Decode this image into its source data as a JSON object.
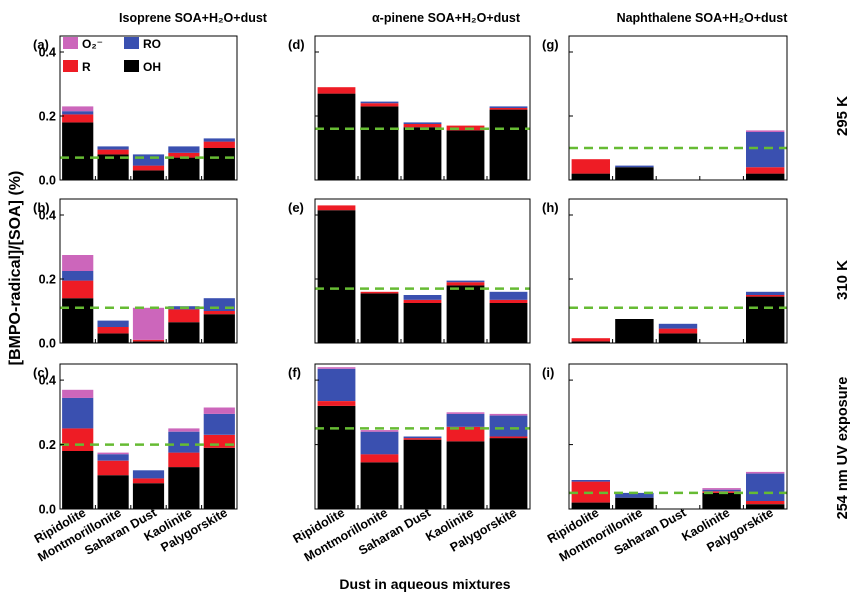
{
  "figure": {
    "y_axis_label": "[BMPO-radical]/[SOA] (%)",
    "x_axis_label": "Dust in aqueous mixtures",
    "column_titles": [
      "Isoprene SOA+H₂O+dust",
      "α-pinene SOA+H₂O+dust",
      "Naphthalene SOA+H₂O+dust"
    ],
    "row_labels": [
      "295 K",
      "310 K",
      "254 nm UV exposure"
    ],
    "legend": [
      {
        "key": "O2",
        "label": "O₂⁻",
        "color": "#cc66bb"
      },
      {
        "key": "RO",
        "label": "RO",
        "color": "#3a50b0"
      },
      {
        "key": "R",
        "label": "R",
        "color": "#ee1c25"
      },
      {
        "key": "OH",
        "label": "OH",
        "color": "#000000"
      }
    ],
    "reference_line_color": "#66bb33"
  },
  "chart_data": [
    {
      "panel": "(a)",
      "type": "bar",
      "stacked": true,
      "categories": [
        "Ripidolite",
        "Montmorillonite",
        "Saharan Dust",
        "Kaolinite",
        "Palygorskite"
      ],
      "ylim": [
        0,
        0.45
      ],
      "yticks": [
        0.0,
        0.2,
        0.4
      ],
      "reference_line": 0.07,
      "series": [
        {
          "name": "OH",
          "values": [
            0.18,
            0.08,
            0.03,
            0.07,
            0.1
          ]
        },
        {
          "name": "R",
          "values": [
            0.025,
            0.015,
            0.015,
            0.015,
            0.02
          ]
        },
        {
          "name": "RO",
          "values": [
            0.01,
            0.01,
            0.035,
            0.02,
            0.01
          ]
        },
        {
          "name": "O2",
          "values": [
            0.015,
            0.0,
            0.0,
            0.0,
            0.0
          ]
        }
      ]
    },
    {
      "panel": "(d)",
      "type": "bar",
      "stacked": true,
      "categories": [
        "Ripidolite",
        "Montmorillonite",
        "Saharan Dust",
        "Kaolinite",
        "Palygorskite"
      ],
      "ylim": [
        0,
        0.45
      ],
      "yticks": [
        0.0,
        0.2,
        0.4
      ],
      "reference_line": 0.16,
      "series": [
        {
          "name": "OH",
          "values": [
            0.27,
            0.23,
            0.165,
            0.155,
            0.22
          ]
        },
        {
          "name": "R",
          "values": [
            0.02,
            0.01,
            0.01,
            0.015,
            0.005
          ]
        },
        {
          "name": "RO",
          "values": [
            0.0,
            0.005,
            0.005,
            0.0,
            0.005
          ]
        },
        {
          "name": "O2",
          "values": [
            0.0,
            0.0,
            0.0,
            0.0,
            0.0
          ]
        }
      ]
    },
    {
      "panel": "(g)",
      "type": "bar",
      "stacked": true,
      "categories": [
        "Ripidolite",
        "Montmorillonite",
        "Saharan Dust",
        "Kaolinite",
        "Palygorskite"
      ],
      "ylim": [
        0,
        0.45
      ],
      "yticks": [
        0.0,
        0.2,
        0.4
      ],
      "reference_line": 0.1,
      "series": [
        {
          "name": "OH",
          "values": [
            0.02,
            0.04,
            0,
            0,
            0.02
          ]
        },
        {
          "name": "R",
          "values": [
            0.045,
            0.0,
            0,
            0,
            0.02
          ]
        },
        {
          "name": "RO",
          "values": [
            0.0,
            0.005,
            0,
            0,
            0.11
          ]
        },
        {
          "name": "O2",
          "values": [
            0.0,
            0.0,
            0,
            0,
            0.005
          ]
        }
      ]
    },
    {
      "panel": "(b)",
      "type": "bar",
      "stacked": true,
      "categories": [
        "Ripidolite",
        "Montmorillonite",
        "Saharan Dust",
        "Kaolinite",
        "Palygorskite"
      ],
      "ylim": [
        0,
        0.45
      ],
      "yticks": [
        0.0,
        0.2,
        0.4
      ],
      "reference_line": 0.11,
      "series": [
        {
          "name": "OH",
          "values": [
            0.14,
            0.03,
            0.005,
            0.065,
            0.09
          ]
        },
        {
          "name": "R",
          "values": [
            0.055,
            0.02,
            0.005,
            0.04,
            0.01
          ]
        },
        {
          "name": "RO",
          "values": [
            0.03,
            0.02,
            0.0,
            0.01,
            0.04
          ]
        },
        {
          "name": "O2",
          "values": [
            0.05,
            0.0,
            0.1,
            0.0,
            0.0
          ]
        }
      ]
    },
    {
      "panel": "(e)",
      "type": "bar",
      "stacked": true,
      "categories": [
        "Ripidolite",
        "Montmorillonite",
        "Saharan Dust",
        "Kaolinite",
        "Palygorskite"
      ],
      "ylim": [
        0,
        0.45
      ],
      "yticks": [
        0.0,
        0.2,
        0.4
      ],
      "reference_line": 0.17,
      "series": [
        {
          "name": "OH",
          "values": [
            0.415,
            0.155,
            0.125,
            0.18,
            0.125
          ]
        },
        {
          "name": "R",
          "values": [
            0.015,
            0.005,
            0.01,
            0.01,
            0.01
          ]
        },
        {
          "name": "RO",
          "values": [
            0.0,
            0.0,
            0.015,
            0.005,
            0.025
          ]
        },
        {
          "name": "O2",
          "values": [
            0.0,
            0.0,
            0.0,
            0.0,
            0.0
          ]
        }
      ]
    },
    {
      "panel": "(h)",
      "type": "bar",
      "stacked": true,
      "categories": [
        "Ripidolite",
        "Montmorillonite",
        "Saharan Dust",
        "Kaolinite",
        "Palygorskite"
      ],
      "ylim": [
        0,
        0.45
      ],
      "yticks": [
        0.0,
        0.2,
        0.4
      ],
      "reference_line": 0.11,
      "series": [
        {
          "name": "OH",
          "values": [
            0.005,
            0.075,
            0.03,
            0,
            0.145
          ]
        },
        {
          "name": "R",
          "values": [
            0.01,
            0.0,
            0.015,
            0,
            0.005
          ]
        },
        {
          "name": "RO",
          "values": [
            0.0,
            0.0,
            0.015,
            0,
            0.01
          ]
        },
        {
          "name": "O2",
          "values": [
            0.0,
            0.0,
            0.0,
            0,
            0.0
          ]
        }
      ]
    },
    {
      "panel": "(c)",
      "type": "bar",
      "stacked": true,
      "categories": [
        "Ripidolite",
        "Montmorillonite",
        "Saharan Dust",
        "Kaolinite",
        "Palygorskite"
      ],
      "ylim": [
        0,
        0.45
      ],
      "yticks": [
        0.0,
        0.2,
        0.4
      ],
      "reference_line": 0.2,
      "series": [
        {
          "name": "OH",
          "values": [
            0.18,
            0.105,
            0.08,
            0.13,
            0.19
          ]
        },
        {
          "name": "R",
          "values": [
            0.07,
            0.045,
            0.015,
            0.045,
            0.04
          ]
        },
        {
          "name": "RO",
          "values": [
            0.095,
            0.02,
            0.025,
            0.065,
            0.065
          ]
        },
        {
          "name": "O2",
          "values": [
            0.025,
            0.005,
            0.0,
            0.01,
            0.02
          ]
        }
      ]
    },
    {
      "panel": "(f)",
      "type": "bar",
      "stacked": true,
      "categories": [
        "Ripidolite",
        "Montmorillonite",
        "Saharan Dust",
        "Kaolinite",
        "Palygorskite"
      ],
      "ylim": [
        0,
        0.45
      ],
      "yticks": [
        0.0,
        0.2,
        0.4
      ],
      "reference_line": 0.25,
      "series": [
        {
          "name": "OH",
          "values": [
            0.32,
            0.145,
            0.215,
            0.21,
            0.22
          ]
        },
        {
          "name": "R",
          "values": [
            0.015,
            0.025,
            0.005,
            0.045,
            0.005
          ]
        },
        {
          "name": "RO",
          "values": [
            0.1,
            0.07,
            0.005,
            0.04,
            0.065
          ]
        },
        {
          "name": "O2",
          "values": [
            0.005,
            0.005,
            0.0,
            0.005,
            0.005
          ]
        }
      ]
    },
    {
      "panel": "(i)",
      "type": "bar",
      "stacked": true,
      "categories": [
        "Ripidolite",
        "Montmorillonite",
        "Saharan Dust",
        "Kaolinite",
        "Palygorskite"
      ],
      "ylim": [
        0,
        0.45
      ],
      "yticks": [
        0.0,
        0.2,
        0.4
      ],
      "reference_line": 0.05,
      "series": [
        {
          "name": "OH",
          "values": [
            0.02,
            0.035,
            0,
            0.05,
            0.015
          ]
        },
        {
          "name": "R",
          "values": [
            0.065,
            0.0,
            0,
            0.005,
            0.01
          ]
        },
        {
          "name": "RO",
          "values": [
            0.005,
            0.015,
            0,
            0.005,
            0.085
          ]
        },
        {
          "name": "O2",
          "values": [
            0.0,
            0.0,
            0,
            0.005,
            0.005
          ]
        }
      ]
    }
  ]
}
